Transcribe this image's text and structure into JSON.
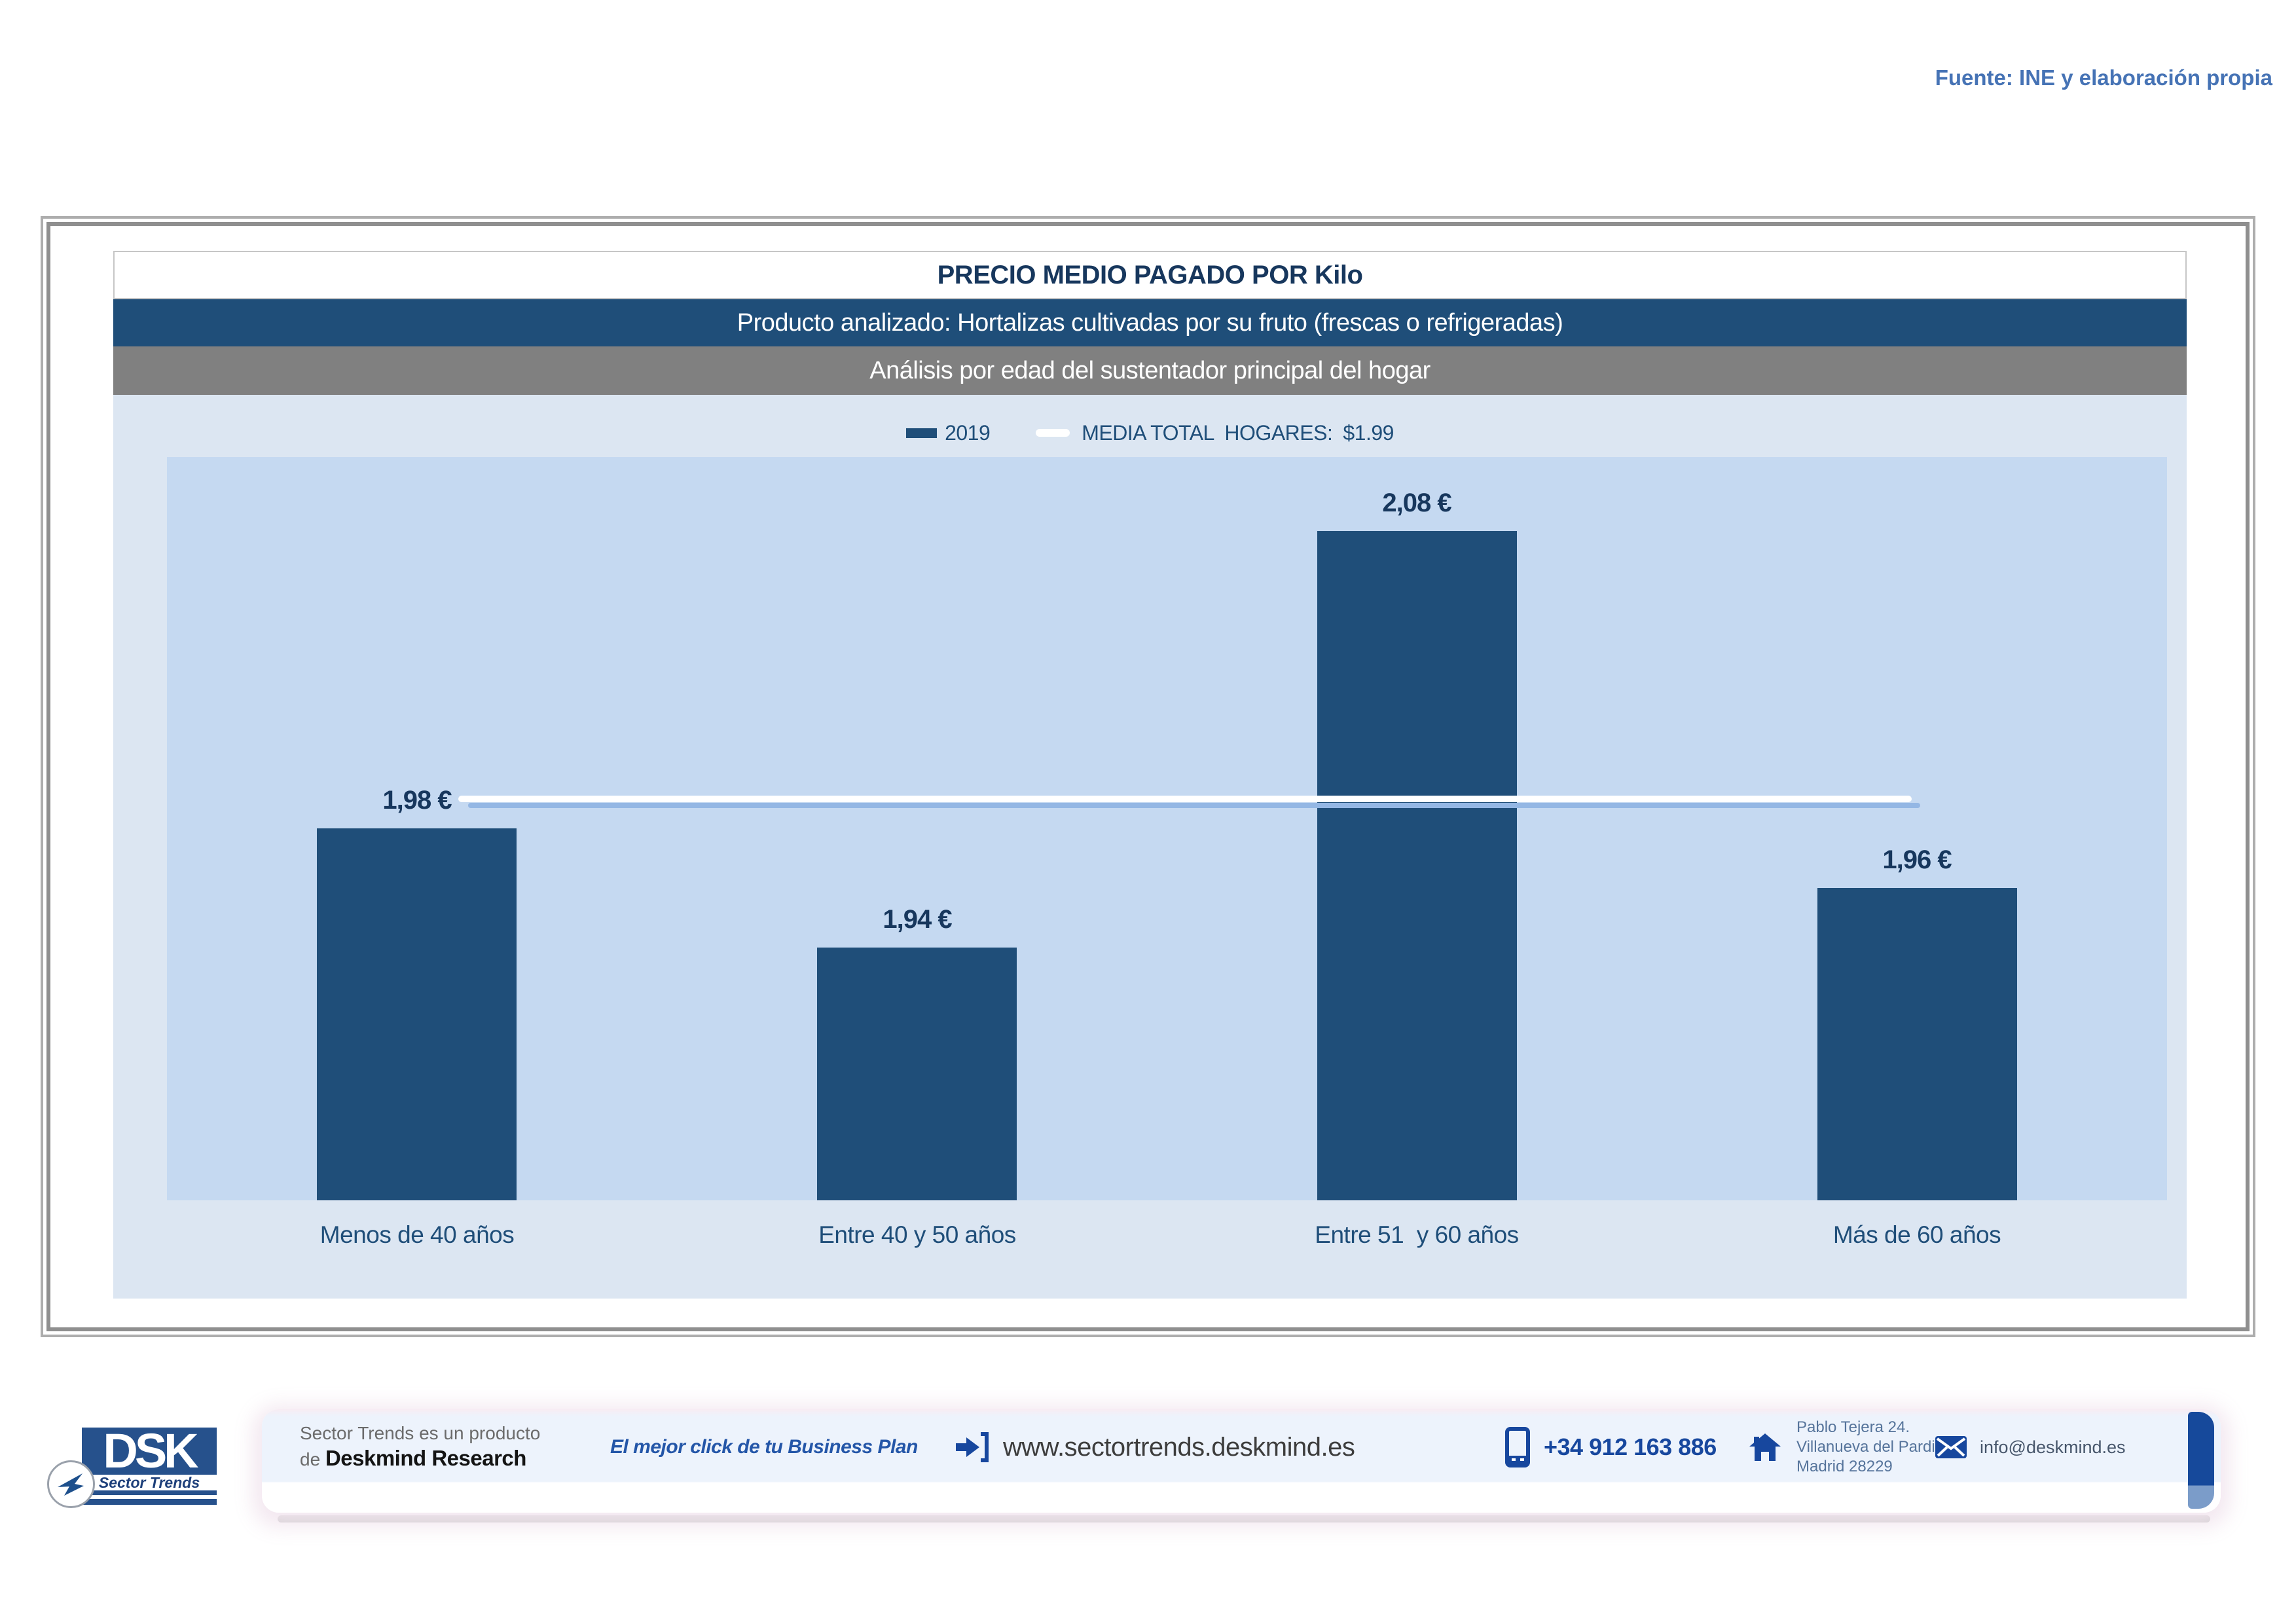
{
  "source_note": "Fuente: INE y elaboración propia",
  "header": {
    "title": "PRECIO MEDIO PAGADO POR Kilo",
    "subtitle_product": "Producto analizado: Hortalizas cultivadas por su fruto (frescas o refrigeradas)",
    "subtitle_analysis": "Análisis por edad del sustentador principal del hogar"
  },
  "legend": {
    "series_label": "2019",
    "mean_label": "MEDIA TOTAL  HOGARES:",
    "mean_value": "$1.99"
  },
  "chart_data": {
    "type": "bar",
    "title": "PRECIO MEDIO PAGADO POR Kilo",
    "categories": [
      "Menos de 40 años",
      "Entre 40 y 50 años",
      "Entre 51  y 60 años",
      "Más de 60 años"
    ],
    "series": [
      {
        "name": "2019",
        "values": [
          1.98,
          1.94,
          2.08,
          1.96
        ]
      }
    ],
    "value_labels": [
      "1,98 €",
      "1,94 €",
      "2,08 €",
      "1,96 €"
    ],
    "mean_line": {
      "label": "MEDIA TOTAL HOGARES",
      "value": 1.99,
      "display": "$1.99"
    },
    "unit": "€",
    "ylim": [
      1.855,
      2.105
    ],
    "grid": false,
    "legend_position": "top-center",
    "colors": {
      "bar": "#1F4E79",
      "mean_line": "#FFFFFF",
      "mean_line_shadow": "#94B7E4",
      "plot_bg": "#C5D9F1",
      "chart_bg": "#DCE6F2",
      "value_label_text": "#17375D",
      "axis_label_text": "#1F4E79"
    }
  },
  "footer": {
    "product_line1": "Sector Trends es un producto",
    "product_line2_prefix": "de ",
    "product_line2_name": "Deskmind Research",
    "tagline": "El mejor click de tu Business Plan",
    "website": "www.sectortrends.deskmind.es",
    "phone": "+34 912 163 886",
    "address_line1": "Pablo Tejera 24.",
    "address_line2": "Villanueva del Pardillo.",
    "address_line3": "Madrid 28229",
    "email": "info@deskmind.es",
    "logo_acronym": "DSK",
    "logo_sublabel": "Sector Trends"
  },
  "colors": {
    "navy": "#1F4E79",
    "title_text": "#17375D",
    "subheader_gray": "#808080",
    "source_note_blue": "#4673B5",
    "footer_link_navy": "#17479E"
  }
}
